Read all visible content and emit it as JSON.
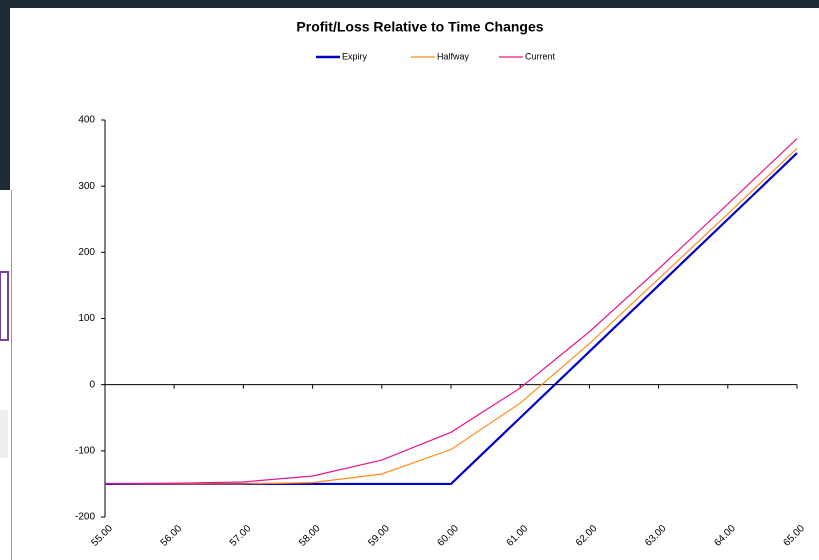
{
  "chart_data": {
    "type": "line",
    "title": "Profit/Loss Relative to Time Changes",
    "x": [
      55,
      56,
      57,
      58,
      59,
      60,
      61,
      62,
      63,
      64,
      65
    ],
    "series": [
      {
        "name": "Expiry",
        "color": "#0000c8",
        "values": [
          -150,
          -150,
          -150,
          -150,
          -150,
          -150,
          -50,
          50,
          150,
          250,
          350
        ]
      },
      {
        "name": "Halfway",
        "color": "#ff8c1a",
        "values": [
          -150,
          -150,
          -150,
          -148,
          -135,
          -98,
          -28,
          62,
          160,
          258,
          357
        ]
      },
      {
        "name": "Current",
        "color": "#e6168c",
        "values": [
          -150,
          -149,
          -147,
          -138,
          -114,
          -72,
          -5,
          80,
          175,
          273,
          372
        ]
      }
    ],
    "xlim": [
      55,
      65
    ],
    "xticks": [
      {
        "value": 55,
        "label": "55.00"
      },
      {
        "value": 56,
        "label": "56.00"
      },
      {
        "value": 57,
        "label": "57.00"
      },
      {
        "value": 58,
        "label": "58.00"
      },
      {
        "value": 59,
        "label": "59.00"
      },
      {
        "value": 60,
        "label": "60.00"
      },
      {
        "value": 61,
        "label": "61.00"
      },
      {
        "value": 62,
        "label": "62.00"
      },
      {
        "value": 63,
        "label": "63.00"
      },
      {
        "value": 64,
        "label": "64.00"
      },
      {
        "value": 65,
        "label": "65.00"
      }
    ],
    "ylim": [
      -200,
      400
    ],
    "yticks": [
      -200,
      -100,
      0,
      100,
      200,
      300,
      400
    ],
    "grid": false,
    "legend": "top"
  }
}
